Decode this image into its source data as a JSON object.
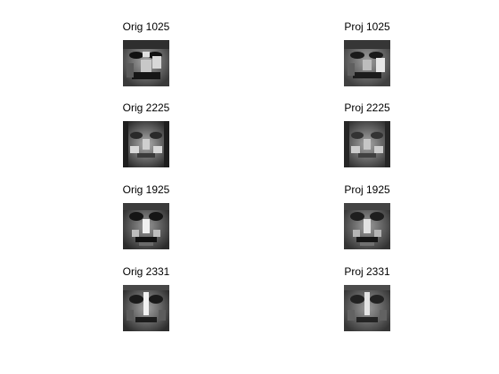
{
  "figure": {
    "panels": [
      {
        "orig_title": "Orig 1025",
        "proj_title": "Proj 1025"
      },
      {
        "orig_title": "Orig 2225",
        "proj_title": "Proj 2225"
      },
      {
        "orig_title": "Orig 1925",
        "proj_title": "Proj 1925"
      },
      {
        "orig_title": "Orig 2331",
        "proj_title": "Proj 2331"
      }
    ]
  }
}
